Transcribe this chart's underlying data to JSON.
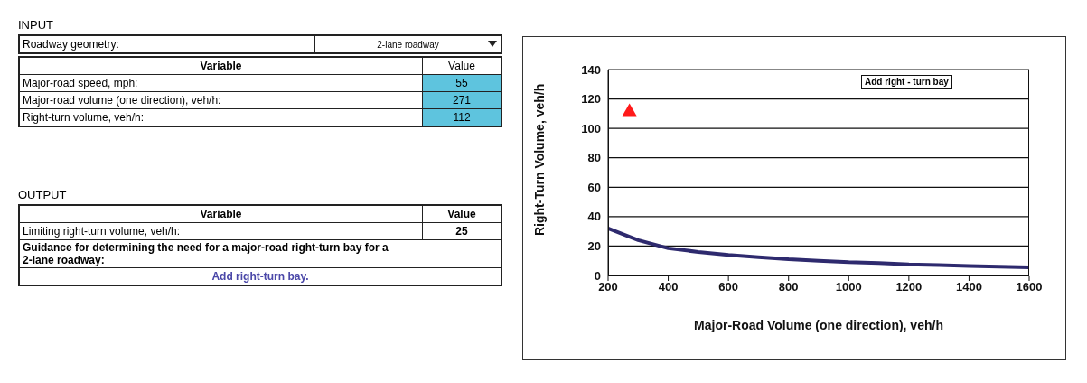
{
  "chart_data": [
    {
      "type": "other",
      "title": "INPUT",
      "annotations": [
        "Roadway geometry:",
        "2-lane roadway",
        "Variable",
        "Value",
        "Major-road speed, mph:",
        "55",
        "Major-road volume (one direction), veh/h:",
        "271",
        "Right-turn volume, veh/h:",
        "112"
      ]
    },
    {
      "type": "other",
      "title": "OUTPUT",
      "annotations": [
        "Variable",
        "Value",
        "Limiting right-turn volume, veh/h:",
        "25",
        "Guidance for determining the need for a major-road right-turn bay for a 2-lane roadway:",
        "Add right-turn bay."
      ]
    },
    {
      "type": "line",
      "xlabel": "Major-Road Volume (one direction), veh/h",
      "ylabel": "Right-Turn Volume, veh/h",
      "xlim": [
        200,
        1600
      ],
      "xticks": [
        200,
        400,
        600,
        800,
        1000,
        1200,
        1400,
        1600
      ],
      "ylim": [
        0,
        140
      ],
      "yticks": [
        0,
        20,
        40,
        60,
        80,
        100,
        120,
        140
      ],
      "grid": "y",
      "annotations": [
        "Add right - turn bay"
      ],
      "series": [
        {
          "type": "line",
          "color": "#2e2a6e",
          "marker": "none",
          "x": [
            200,
            300,
            400,
            500,
            600,
            700,
            800,
            900,
            1000,
            1100,
            1200,
            1300,
            1400,
            1500,
            1600
          ],
          "values": [
            32,
            24,
            18.5,
            16,
            14,
            12.5,
            11,
            10,
            9,
            8.5,
            7.5,
            7,
            6.5,
            6,
            5.5
          ]
        },
        {
          "type": "scatter",
          "color": "#ff1a1a",
          "marker": "triangle",
          "x": [
            271
          ],
          "values": [
            112
          ]
        }
      ]
    }
  ]
}
